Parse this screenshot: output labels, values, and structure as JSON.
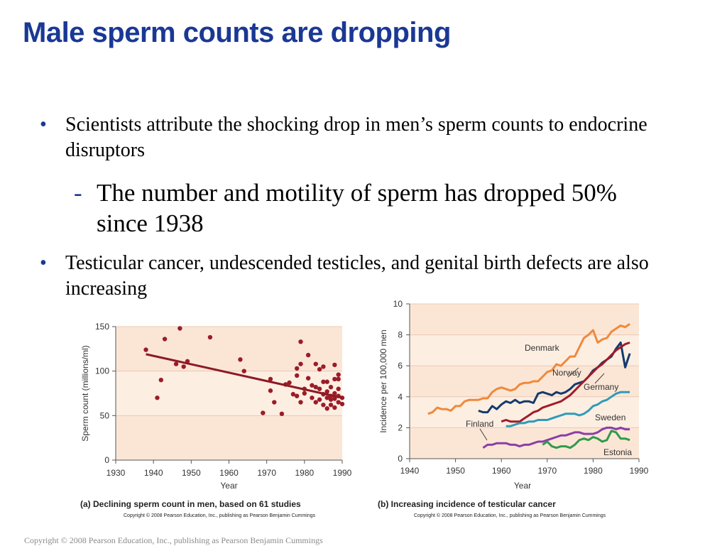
{
  "slide": {
    "title": "Male sperm counts are dropping",
    "bullets": [
      {
        "marker": "•",
        "text": "Scientists attribute the shocking drop in men’s sperm counts to endocrine disruptors"
      },
      {
        "marker": "-",
        "text": "The number and motility of sperm has dropped 50% since 1938"
      },
      {
        "marker": "•",
        "text": "Testicular cancer, undescended testicles, and genital birth defects are also increasing"
      }
    ],
    "footer": "Copyright © 2008 Pearson Education, Inc., publishing as Pearson Benjamin Cummings"
  },
  "colors": {
    "title": "#1a3894",
    "plot_bg_a": "#fbe6d6",
    "plot_bg_b": "#fdeee2",
    "dots": "#9b1c28",
    "trend": "#8c1a24",
    "denmark": "#f0893a",
    "norway": "#143a6e",
    "germany": "#a01c2a",
    "sweden": "#2e9bb8",
    "finland": "#8a3ea6",
    "estonia": "#2f9a4a"
  },
  "chart_data": [
    {
      "type": "scatter",
      "caption": "(a) Declining sperm count in men, based on 61 studies",
      "copyright": "Copyright © 2008 Pearson Education, Inc., publishing as Pearson Benjamin Cummings",
      "xlabel": "Year",
      "ylabel": "Sperm count (millions/ml)",
      "xlim": [
        1930,
        1990
      ],
      "ylim": [
        0,
        150
      ],
      "xticks": [
        "1930",
        "1940",
        "1950",
        "1960",
        "1970",
        "1980",
        "1990"
      ],
      "yticks": [
        "0",
        "50",
        "100",
        "150"
      ],
      "trend_line": {
        "x": [
          1938,
          1990
        ],
        "y": [
          119,
          70
        ]
      },
      "points": [
        [
          1938,
          124
        ],
        [
          1941,
          70
        ],
        [
          1942,
          90
        ],
        [
          1943,
          136
        ],
        [
          1946,
          108
        ],
        [
          1947,
          148
        ],
        [
          1948,
          105
        ],
        [
          1949,
          111
        ],
        [
          1955,
          138
        ],
        [
          1963,
          113
        ],
        [
          1964,
          100
        ],
        [
          1969,
          53
        ],
        [
          1971,
          78
        ],
        [
          1971,
          91
        ],
        [
          1972,
          65
        ],
        [
          1974,
          52
        ],
        [
          1975,
          85
        ],
        [
          1976,
          87
        ],
        [
          1977,
          74
        ],
        [
          1978,
          72
        ],
        [
          1978,
          95
        ],
        [
          1978,
          103
        ],
        [
          1979,
          133
        ],
        [
          1979,
          108
        ],
        [
          1979,
          65
        ],
        [
          1980,
          80
        ],
        [
          1980,
          75
        ],
        [
          1981,
          92
        ],
        [
          1981,
          118
        ],
        [
          1982,
          70
        ],
        [
          1982,
          84
        ],
        [
          1983,
          82
        ],
        [
          1983,
          108
        ],
        [
          1983,
          65
        ],
        [
          1984,
          102
        ],
        [
          1984,
          80
        ],
        [
          1984,
          68
        ],
        [
          1985,
          105
        ],
        [
          1985,
          88
        ],
        [
          1985,
          62
        ],
        [
          1986,
          70
        ],
        [
          1986,
          88
        ],
        [
          1986,
          77
        ],
        [
          1986,
          58
        ],
        [
          1987,
          72
        ],
        [
          1987,
          82
        ],
        [
          1987,
          62
        ],
        [
          1988,
          69
        ],
        [
          1988,
          75
        ],
        [
          1988,
          91
        ],
        [
          1988,
          107
        ],
        [
          1989,
          80
        ],
        [
          1989,
          96
        ],
        [
          1989,
          91
        ],
        [
          1989,
          72
        ],
        [
          1989,
          65
        ],
        [
          1990,
          70
        ],
        [
          1990,
          63
        ],
        [
          1987,
          68
        ],
        [
          1988,
          59
        ],
        [
          1985,
          74
        ]
      ]
    },
    {
      "type": "line",
      "caption": "(b) Increasing incidence of testicular cancer",
      "copyright": "Copyright © 2008 Pearson Education, Inc., publishing as Pearson Benjamin Cummings",
      "xlabel": "Year",
      "ylabel": "Incidence per 100,000 men",
      "xlim": [
        1940,
        1990
      ],
      "ylim": [
        0,
        10
      ],
      "xticks": [
        "1940",
        "1950",
        "1960",
        "1970",
        "1980",
        "1990"
      ],
      "yticks": [
        "0",
        "2",
        "4",
        "6",
        "8",
        "10"
      ],
      "series": [
        {
          "name": "Denmark",
          "color": "#f0893a",
          "x": [
            1944,
            1945,
            1946,
            1947,
            1948,
            1949,
            1950,
            1951,
            1952,
            1953,
            1954,
            1955,
            1956,
            1957,
            1958,
            1959,
            1960,
            1961,
            1962,
            1963,
            1964,
            1965,
            1966,
            1967,
            1968,
            1969,
            1970,
            1971,
            1972,
            1973,
            1974,
            1975,
            1976,
            1977,
            1978,
            1979,
            1980,
            1981,
            1982,
            1983,
            1984,
            1985,
            1986,
            1987,
            1988
          ],
          "y": [
            2.9,
            3.0,
            3.3,
            3.2,
            3.2,
            3.1,
            3.4,
            3.4,
            3.7,
            3.8,
            3.8,
            3.8,
            3.9,
            3.9,
            4.3,
            4.5,
            4.6,
            4.5,
            4.4,
            4.5,
            4.8,
            4.9,
            4.9,
            5.0,
            5.0,
            5.3,
            5.6,
            5.7,
            6.1,
            6.0,
            6.3,
            6.6,
            6.6,
            7.2,
            7.8,
            8.0,
            8.3,
            7.5,
            7.7,
            7.8,
            8.2,
            8.4,
            8.6,
            8.5,
            8.7
          ]
        },
        {
          "name": "Norway",
          "color": "#143a6e",
          "x": [
            1955,
            1956,
            1957,
            1958,
            1959,
            1960,
            1961,
            1962,
            1963,
            1964,
            1965,
            1966,
            1967,
            1968,
            1969,
            1970,
            1971,
            1972,
            1973,
            1974,
            1975,
            1976,
            1977,
            1978,
            1979,
            1980,
            1981,
            1982,
            1983,
            1984,
            1985,
            1986,
            1987,
            1988
          ],
          "y": [
            3.1,
            3.0,
            3.0,
            3.4,
            3.2,
            3.5,
            3.7,
            3.6,
            3.8,
            3.6,
            3.7,
            3.7,
            3.6,
            4.2,
            4.3,
            4.2,
            4.1,
            4.3,
            4.2,
            4.3,
            4.5,
            4.8,
            4.9,
            5.0,
            5.3,
            5.7,
            5.9,
            6.2,
            6.4,
            6.6,
            7.1,
            7.5,
            5.9,
            6.8
          ]
        },
        {
          "name": "Germany",
          "color": "#a01c2a",
          "x": [
            1960,
            1961,
            1962,
            1963,
            1964,
            1965,
            1966,
            1967,
            1968,
            1969,
            1970,
            1971,
            1972,
            1973,
            1974,
            1975,
            1976,
            1977,
            1978,
            1979,
            1980,
            1981,
            1982,
            1983,
            1984,
            1985,
            1986,
            1987,
            1988
          ],
          "y": [
            2.4,
            2.5,
            2.4,
            2.4,
            2.4,
            2.6,
            2.8,
            3.0,
            3.1,
            3.3,
            3.4,
            3.5,
            3.6,
            3.7,
            3.9,
            4.1,
            4.4,
            4.7,
            5.0,
            5.3,
            5.6,
            5.9,
            6.1,
            6.4,
            6.7,
            7.0,
            7.2,
            7.4,
            7.5
          ]
        },
        {
          "name": "Sweden",
          "color": "#2e9bb8",
          "x": [
            1961,
            1962,
            1963,
            1964,
            1965,
            1966,
            1967,
            1968,
            1969,
            1970,
            1971,
            1972,
            1973,
            1974,
            1975,
            1976,
            1977,
            1978,
            1979,
            1980,
            1981,
            1982,
            1983,
            1984,
            1985,
            1986,
            1987,
            1988
          ],
          "y": [
            2.1,
            2.1,
            2.2,
            2.3,
            2.3,
            2.4,
            2.4,
            2.5,
            2.5,
            2.5,
            2.6,
            2.7,
            2.8,
            2.9,
            2.9,
            2.9,
            2.8,
            2.9,
            3.1,
            3.4,
            3.5,
            3.7,
            3.8,
            4.0,
            4.2,
            4.3,
            4.3,
            4.3
          ]
        },
        {
          "name": "Finland",
          "color": "#8a3ea6",
          "x": [
            1956,
            1957,
            1958,
            1959,
            1960,
            1961,
            1962,
            1963,
            1964,
            1965,
            1966,
            1967,
            1968,
            1969,
            1970,
            1971,
            1972,
            1973,
            1974,
            1975,
            1976,
            1977,
            1978,
            1979,
            1980,
            1981,
            1982,
            1983,
            1984,
            1985,
            1986,
            1987,
            1988
          ],
          "y": [
            0.7,
            0.9,
            0.9,
            1.0,
            1.0,
            1.0,
            0.9,
            0.9,
            0.8,
            0.9,
            0.9,
            1.0,
            1.1,
            1.1,
            1.2,
            1.3,
            1.4,
            1.5,
            1.5,
            1.6,
            1.7,
            1.7,
            1.6,
            1.6,
            1.6,
            1.7,
            1.9,
            2.0,
            2.0,
            1.9,
            2.0,
            1.9,
            1.9
          ]
        },
        {
          "name": "Estonia",
          "color": "#2f9a4a",
          "x": [
            1969,
            1970,
            1971,
            1972,
            1973,
            1974,
            1975,
            1976,
            1977,
            1978,
            1979,
            1980,
            1981,
            1982,
            1983,
            1984,
            1985,
            1986,
            1987,
            1988
          ],
          "y": [
            0.9,
            1.1,
            0.8,
            0.7,
            0.8,
            0.8,
            0.7,
            0.9,
            1.2,
            1.3,
            1.2,
            1.4,
            1.3,
            1.1,
            1.2,
            1.8,
            1.7,
            1.3,
            1.3,
            1.2
          ]
        }
      ],
      "labels": [
        "Denmark",
        "Norway",
        "Germany",
        "Sweden",
        "Finland",
        "Estonia"
      ]
    }
  ]
}
